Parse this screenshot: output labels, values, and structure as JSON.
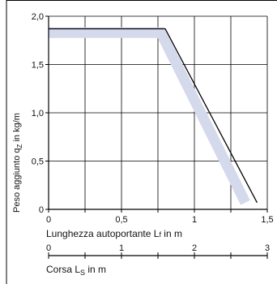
{
  "chart_data": {
    "type": "line",
    "ylabel": "Peso aggiunto  q",
    "ylabel_sub": "Z",
    "ylabel_unit": " in kg/m",
    "xlabel_primary": "Lunghezza autoportante L",
    "xlabel_primary_sub": "f",
    "xlabel_primary_unit": " in m",
    "xlabel_secondary": "Corsa L",
    "xlabel_secondary_sub": "S",
    "xlabel_secondary_unit": " in m",
    "ylim": [
      0,
      2.0
    ],
    "xlim_primary": [
      0,
      1.5
    ],
    "xlim_secondary": [
      0,
      3.0
    ],
    "y_ticks": [
      "0",
      "0,5",
      "1,0",
      "1,5",
      "2,0"
    ],
    "x_ticks_primary": [
      "0",
      "0,5",
      "1",
      "1,5"
    ],
    "x_ticks_secondary": [
      "0",
      "1",
      "2",
      "3"
    ],
    "grid": true,
    "series": [
      {
        "style": "band",
        "color": "#d5d9ec",
        "x": [
          0,
          0.77,
          1.35
        ],
        "y": [
          1.83,
          1.83,
          0.07
        ]
      },
      {
        "style": "line",
        "color": "#000000",
        "x": [
          0,
          0.8,
          1.43
        ],
        "y": [
          1.87,
          1.87,
          0.07
        ]
      }
    ]
  }
}
